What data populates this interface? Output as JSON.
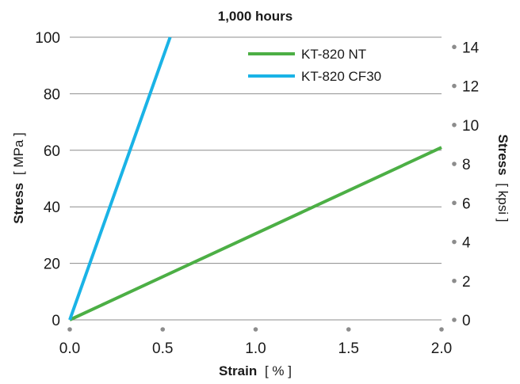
{
  "chart_data": {
    "type": "line",
    "title": "1,000 hours",
    "xlabel": {
      "bold": "Strain",
      "unit": "[ % ]"
    },
    "ylabel": {
      "bold": "Stress",
      "unit": "[ MPa ]"
    },
    "y2label": {
      "bold": "Stress",
      "unit": "[ kpsi ]"
    },
    "xlim": [
      0.0,
      2.0
    ],
    "ylim": [
      0,
      100
    ],
    "y2lim": [
      0,
      14.5
    ],
    "x_ticks": [
      "0.0",
      "0.5",
      "1.0",
      "1.5",
      "2.0"
    ],
    "y_ticks": [
      "0",
      "20",
      "40",
      "60",
      "80",
      "100"
    ],
    "y2_ticks": [
      "0",
      "2",
      "4",
      "6",
      "8",
      "10",
      "12",
      "14"
    ],
    "grid": true,
    "legend_position": "top-right",
    "series": [
      {
        "name": "KT-820 NT",
        "color": "#4caf45",
        "x": [
          0.0,
          2.0
        ],
        "y": [
          0,
          61
        ]
      },
      {
        "name": "KT-820 CF30",
        "color": "#1ab3e6",
        "x": [
          0.0,
          0.54
        ],
        "y": [
          0,
          100
        ]
      }
    ]
  }
}
